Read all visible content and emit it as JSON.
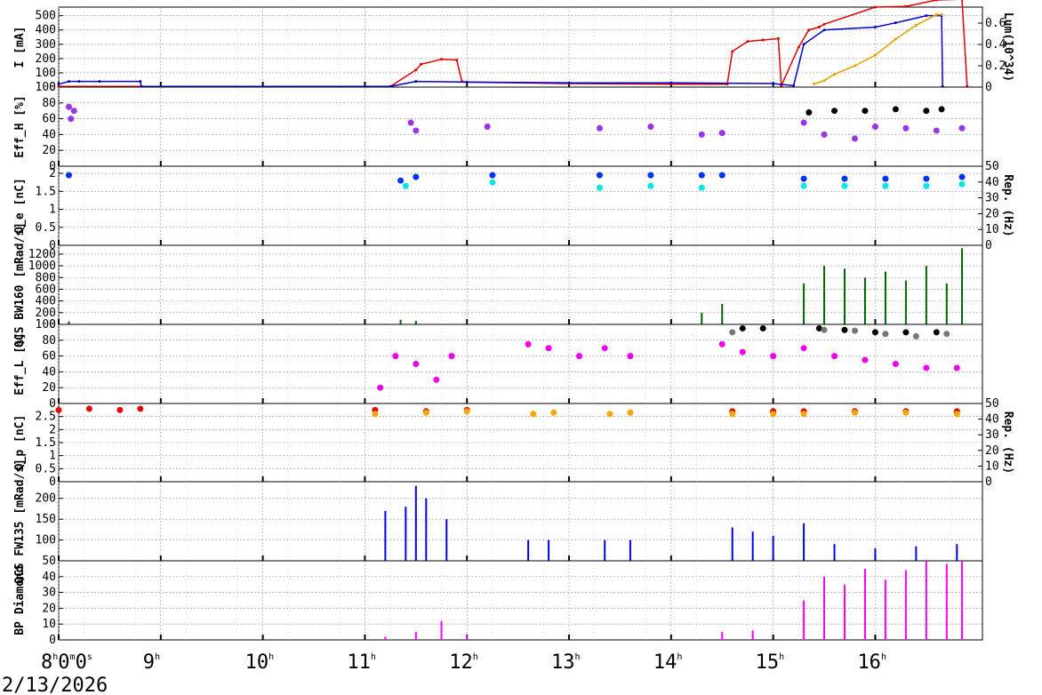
{
  "date_label": "2/13/2026",
  "colors": {
    "current_her": "#e00000",
    "current_ler": "#0000cc",
    "lumi": "#e0a000",
    "eff_h_purple": "#9933ee",
    "eff_black": "#000000",
    "eff_gray": "#777777",
    "qe_blue": "#0033ee",
    "qe_cyan": "#00e8e8",
    "bw160": "#006600",
    "eff_l_magenta": "#ee00ee",
    "qp_red": "#ee0000",
    "qp_orange": "#ffa500",
    "fw135": "#0000ee",
    "diamond": "#ff00ff",
    "grid": "#999999"
  },
  "chart_data": [
    {
      "id": "current",
      "type": "line",
      "ylabel": "I [mA]",
      "ylabel_right": "Lum(10^34)",
      "ylim": [
        0,
        560
      ],
      "yticks": [
        0,
        100,
        200,
        300,
        400,
        500
      ],
      "ylim_right": [
        0,
        0.75
      ],
      "yticks_right": [
        0,
        0.2,
        0.4,
        0.6
      ],
      "series": [
        {
          "color_key": "current_her",
          "x": [
            8.0,
            11.25,
            11.5,
            11.55,
            11.75,
            11.9,
            11.95,
            12.0,
            13.0,
            14.0,
            14.55,
            14.6,
            14.75,
            14.9,
            15.05,
            15.08,
            15.25,
            15.35,
            15.45,
            15.5,
            16.0,
            16.3,
            16.6,
            16.85,
            16.9
          ],
          "y": [
            5,
            5,
            120,
            160,
            195,
            190,
            40,
            35,
            25,
            20,
            20,
            250,
            320,
            330,
            340,
            10,
            280,
            400,
            420,
            440,
            560,
            565,
            610,
            615,
            5
          ]
        },
        {
          "color_key": "current_ler",
          "x": [
            8.0,
            8.1,
            8.2,
            8.4,
            8.8,
            8.81,
            11.25,
            11.5,
            12.0,
            13.0,
            14.0,
            15.0,
            15.2,
            15.3,
            15.5,
            16.0,
            16.2,
            16.5,
            16.65,
            16.66
          ],
          "y": [
            20,
            40,
            40,
            40,
            40,
            5,
            5,
            40,
            35,
            30,
            30,
            25,
            10,
            300,
            400,
            420,
            450,
            500,
            500,
            5
          ]
        },
        {
          "color_key": "lumi",
          "axis": "right",
          "x": [
            15.4,
            15.5,
            15.6,
            15.8,
            16.0,
            16.2,
            16.4,
            16.6,
            16.65
          ],
          "y": [
            0.03,
            0.06,
            0.12,
            0.2,
            0.3,
            0.45,
            0.58,
            0.68,
            0.68
          ]
        }
      ]
    },
    {
      "id": "eff_h",
      "type": "scatter",
      "ylabel": "Eff_H [%]",
      "ylim": [
        0,
        100
      ],
      "yticks": [
        0,
        20,
        40,
        60,
        80,
        100
      ],
      "series": [
        {
          "color_key": "eff_h_purple",
          "x": [
            8.1,
            8.15,
            8.12,
            11.45,
            11.5,
            12.2,
            13.3,
            13.8,
            14.3,
            14.5,
            15.3,
            15.5,
            15.8,
            16.0,
            16.3,
            16.6,
            16.85
          ],
          "y": [
            75,
            70,
            60,
            55,
            45,
            50,
            48,
            50,
            40,
            42,
            55,
            40,
            35,
            50,
            48,
            45,
            48
          ]
        },
        {
          "color_key": "eff_black",
          "x": [
            15.35,
            15.6,
            15.9,
            16.2,
            16.5,
            16.65
          ],
          "y": [
            68,
            70,
            70,
            72,
            70,
            72
          ]
        }
      ]
    },
    {
      "id": "qe",
      "type": "scatter",
      "ylabel": "Q_e [nC]",
      "ylabel_right": "Rep. (Hz)",
      "ylim": [
        0,
        2.2
      ],
      "yticks": [
        0,
        0.5,
        1,
        1.5,
        2
      ],
      "ylim_right": [
        0,
        50
      ],
      "yticks_right": [
        0,
        10,
        20,
        30,
        40,
        50
      ],
      "series": [
        {
          "color_key": "qe_blue",
          "x": [
            8.1,
            11.35,
            11.5,
            12.25,
            13.3,
            13.8,
            14.3,
            14.5,
            15.3,
            15.7,
            16.1,
            16.5,
            16.85
          ],
          "y": [
            1.95,
            1.8,
            1.9,
            1.95,
            1.95,
            1.95,
            1.95,
            1.95,
            1.85,
            1.85,
            1.85,
            1.85,
            1.9
          ]
        },
        {
          "color_key": "qe_cyan",
          "x": [
            11.4,
            12.25,
            13.3,
            13.8,
            14.3,
            15.3,
            15.7,
            16.1,
            16.5,
            16.85
          ],
          "y": [
            1.65,
            1.75,
            1.6,
            1.65,
            1.6,
            1.65,
            1.65,
            1.65,
            1.65,
            1.7
          ]
        }
      ]
    },
    {
      "id": "bw160",
      "type": "bar",
      "ylabel": "QCS BW160 [mRad/s]",
      "ylim": [
        0,
        1350
      ],
      "yticks": [
        0,
        200,
        400,
        600,
        800,
        1000,
        1200
      ],
      "series": [
        {
          "color_key": "bw160",
          "x": [
            8.1,
            11.35,
            11.5,
            14.3,
            14.5,
            15.3,
            15.5,
            15.7,
            15.9,
            16.1,
            16.3,
            16.5,
            16.7,
            16.85
          ],
          "y": [
            50,
            80,
            60,
            200,
            350,
            700,
            1000,
            950,
            800,
            900,
            750,
            1000,
            700,
            1300
          ]
        }
      ]
    },
    {
      "id": "eff_l",
      "type": "scatter",
      "ylabel": "Eff_L [%]",
      "ylim": [
        0,
        100
      ],
      "yticks": [
        0,
        20,
        40,
        60,
        80,
        100
      ],
      "series": [
        {
          "color_key": "eff_l_magenta",
          "x": [
            11.15,
            11.3,
            11.5,
            11.7,
            11.85,
            12.6,
            12.8,
            13.1,
            13.35,
            13.6,
            14.5,
            14.7,
            15.0,
            15.3,
            15.6,
            15.9,
            16.2,
            16.5,
            16.8
          ],
          "y": [
            20,
            60,
            50,
            30,
            60,
            75,
            70,
            60,
            70,
            60,
            75,
            65,
            60,
            70,
            60,
            55,
            50,
            45,
            45
          ]
        },
        {
          "color_key": "eff_black",
          "x": [
            14.7,
            14.9,
            15.45,
            15.7,
            16.0,
            16.3,
            16.6
          ],
          "y": [
            95,
            95,
            95,
            93,
            90,
            90,
            90
          ]
        },
        {
          "color_key": "eff_gray",
          "x": [
            14.6,
            15.5,
            15.8,
            16.1,
            16.4,
            16.7
          ],
          "y": [
            90,
            93,
            92,
            88,
            85,
            88
          ]
        }
      ]
    },
    {
      "id": "qp",
      "type": "scatter",
      "ylabel": "Q_p [nC]",
      "ylabel_right": "Rep. (Hz)",
      "ylim": [
        0,
        3.0
      ],
      "yticks": [
        0,
        0.5,
        1,
        1.5,
        2,
        2.5
      ],
      "ylim_right": [
        0,
        50
      ],
      "yticks_right": [
        0,
        10,
        20,
        30,
        40,
        50
      ],
      "series": [
        {
          "color_key": "qp_red",
          "x": [
            8.0,
            8.3,
            8.6,
            8.8,
            11.1,
            11.6,
            12.0,
            14.6,
            15.0,
            15.3,
            15.8,
            16.3,
            16.8
          ],
          "y": [
            2.75,
            2.8,
            2.75,
            2.8,
            2.75,
            2.7,
            2.75,
            2.7,
            2.7,
            2.7,
            2.7,
            2.7,
            2.7
          ]
        },
        {
          "color_key": "qp_orange",
          "x": [
            11.1,
            11.6,
            12.0,
            12.65,
            12.85,
            13.4,
            13.6,
            14.6,
            15.0,
            15.3,
            15.8,
            16.3,
            16.8
          ],
          "y": [
            2.6,
            2.65,
            2.7,
            2.6,
            2.65,
            2.6,
            2.65,
            2.6,
            2.6,
            2.6,
            2.65,
            2.65,
            2.6
          ]
        }
      ]
    },
    {
      "id": "fw135",
      "type": "bar",
      "ylabel": "QCS FW135 [mRad/s]",
      "ylim": [
        50,
        240
      ],
      "yticks": [
        50,
        100,
        150,
        200
      ],
      "series": [
        {
          "color_key": "fw135",
          "x": [
            11.2,
            11.4,
            11.5,
            11.6,
            11.8,
            12.6,
            12.8,
            13.35,
            13.6,
            14.6,
            14.8,
            15.0,
            15.3,
            15.6,
            16.0,
            16.4,
            16.8
          ],
          "y": [
            170,
            180,
            230,
            200,
            150,
            100,
            100,
            100,
            100,
            130,
            120,
            110,
            140,
            90,
            80,
            85,
            90
          ]
        }
      ]
    },
    {
      "id": "diamond",
      "type": "bar",
      "ylabel": "BP Diamond",
      "ylim": [
        0,
        50
      ],
      "yticks": [
        0,
        10,
        20,
        30,
        40
      ],
      "series": [
        {
          "color_key": "diamond",
          "x": [
            11.2,
            11.5,
            11.75,
            12.0,
            14.5,
            14.8,
            15.3,
            15.5,
            15.7,
            15.9,
            16.1,
            16.3,
            16.5,
            16.7,
            16.85
          ],
          "y": [
            2,
            5,
            12,
            3,
            5,
            6,
            25,
            40,
            35,
            45,
            38,
            44,
            50,
            48,
            50
          ]
        }
      ]
    }
  ],
  "time_axis": {
    "range": [
      8.0,
      17.05
    ],
    "ticks": [
      {
        "t": 8,
        "text": "8",
        "sup": "h",
        "extra": "0",
        "sup2": "m",
        "extra2": "0",
        "sup3": "s"
      },
      {
        "t": 9,
        "text": "9",
        "sup": "h"
      },
      {
        "t": 10,
        "text": "10",
        "sup": "h"
      },
      {
        "t": 11,
        "text": "11",
        "sup": "h"
      },
      {
        "t": 12,
        "text": "12",
        "sup": "h"
      },
      {
        "t": 13,
        "text": "13",
        "sup": "h"
      },
      {
        "t": 14,
        "text": "14",
        "sup": "h"
      },
      {
        "t": 15,
        "text": "15",
        "sup": "h"
      },
      {
        "t": 16,
        "text": "16",
        "sup": "h"
      }
    ]
  }
}
